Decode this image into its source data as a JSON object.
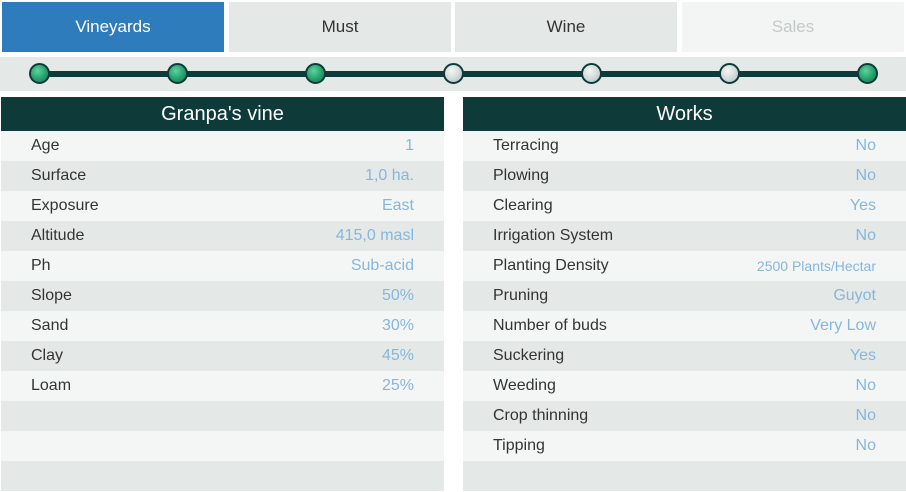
{
  "tabs": [
    {
      "label": "Vineyards",
      "state": "active"
    },
    {
      "label": "Must",
      "state": "normal"
    },
    {
      "label": "Wine",
      "state": "normal"
    },
    {
      "label": "Sales",
      "state": "disabled"
    }
  ],
  "stepper": {
    "steps": [
      "done",
      "done",
      "done",
      "todo",
      "todo",
      "todo",
      "done"
    ]
  },
  "colors": {
    "accent": "#2f7cbc",
    "header_bg": "#0f3a3a",
    "value_text": "#86b6dc",
    "step_done": "#23a06a"
  },
  "left_panel": {
    "title": "Granpa's vine",
    "rows": [
      {
        "label": "Age",
        "value": "1"
      },
      {
        "label": "Surface",
        "value": "1,0 ha."
      },
      {
        "label": "Exposure",
        "value": "East"
      },
      {
        "label": "Altitude",
        "value": "415,0 masl"
      },
      {
        "label": "Ph",
        "value": "Sub-acid"
      },
      {
        "label": "Slope",
        "value": "50%"
      },
      {
        "label": "Sand",
        "value": "30%"
      },
      {
        "label": "Clay",
        "value": "45%"
      },
      {
        "label": "Loam",
        "value": "25%"
      },
      {
        "label": "",
        "value": ""
      },
      {
        "label": "",
        "value": ""
      },
      {
        "label": "",
        "value": ""
      }
    ]
  },
  "right_panel": {
    "title": "Works",
    "rows": [
      {
        "label": "Terracing",
        "value": "No"
      },
      {
        "label": "Plowing",
        "value": "No"
      },
      {
        "label": "Clearing",
        "value": "Yes"
      },
      {
        "label": "Irrigation System",
        "value": "No"
      },
      {
        "label": "Planting Density",
        "value": "2500 Plants/Hectar"
      },
      {
        "label": "Pruning",
        "value": "Guyot"
      },
      {
        "label": "Number of buds",
        "value": "Very Low"
      },
      {
        "label": "Suckering",
        "value": "Yes"
      },
      {
        "label": "Weeding",
        "value": "No"
      },
      {
        "label": "Crop thinning",
        "value": "No"
      },
      {
        "label": "Tipping",
        "value": "No"
      },
      {
        "label": "",
        "value": ""
      }
    ]
  }
}
